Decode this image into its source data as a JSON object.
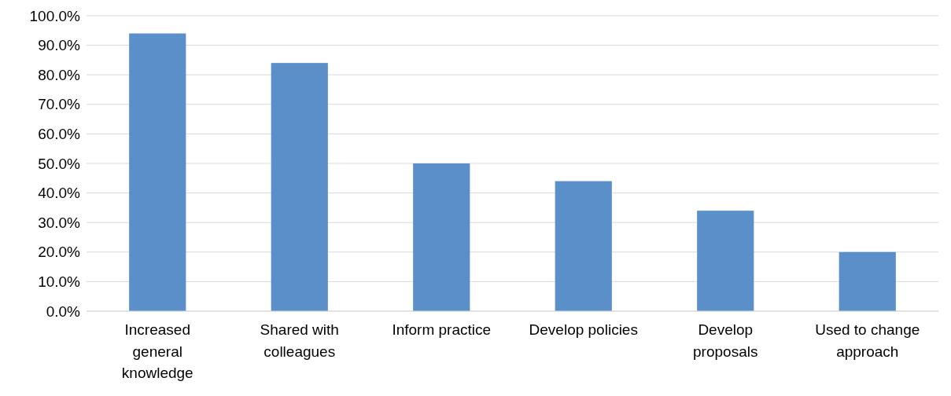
{
  "chart_data": {
    "type": "bar",
    "categories": [
      "Increased general knowledge",
      "Shared with colleagues",
      "Inform practice",
      "Develop policies",
      "Develop proposals",
      "Used to change approach"
    ],
    "values": [
      94,
      84,
      50,
      44,
      34,
      20
    ],
    "color": "#5b8fc9",
    "ylim": [
      0,
      100
    ],
    "yticks": [
      {
        "value": 0,
        "label": "0.0%"
      },
      {
        "value": 10,
        "label": "10.0%"
      },
      {
        "value": 20,
        "label": "20.0%"
      },
      {
        "value": 30,
        "label": "30.0%"
      },
      {
        "value": 40,
        "label": "40.0%"
      },
      {
        "value": 50,
        "label": "50.0%"
      },
      {
        "value": 60,
        "label": "60.0%"
      },
      {
        "value": 70,
        "label": "70.0%"
      },
      {
        "value": 80,
        "label": "80.0%"
      },
      {
        "value": 90,
        "label": "90.0%"
      },
      {
        "value": 100,
        "label": "100.0%"
      }
    ],
    "grid": true
  }
}
